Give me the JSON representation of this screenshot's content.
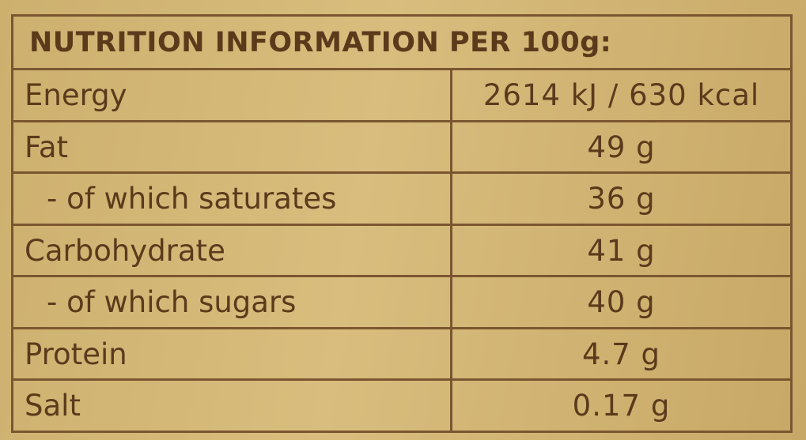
{
  "title": "NUTRITION INFORMATION PER 100g:",
  "table": {
    "rows": [
      {
        "label": "Energy",
        "value": "2614 kJ / 630 kcal",
        "indent": false
      },
      {
        "label": "Fat",
        "value": "49 g",
        "indent": false
      },
      {
        "label": "- of which saturates",
        "value": "36 g",
        "indent": true
      },
      {
        "label": "Carbohydrate",
        "value": "41 g",
        "indent": false
      },
      {
        "label": "- of which sugars",
        "value": "40 g",
        "indent": true
      },
      {
        "label": "Protein",
        "value": "4.7 g",
        "indent": false
      },
      {
        "label": "Salt",
        "value": "0.17 g",
        "indent": false
      }
    ]
  }
}
